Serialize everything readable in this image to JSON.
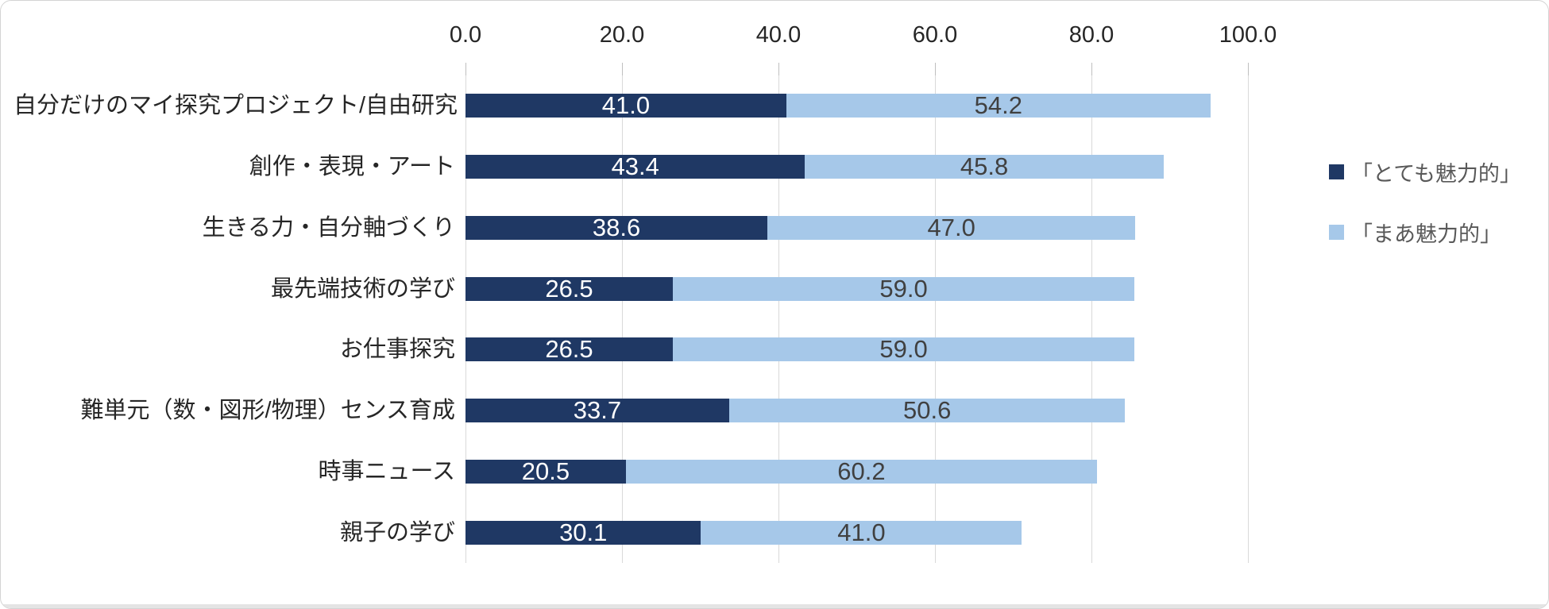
{
  "chart_data": {
    "type": "bar",
    "orientation": "horizontal",
    "stacked": true,
    "title": "",
    "xlabel": "",
    "ylabel": "",
    "xlim": [
      0,
      100
    ],
    "grid": true,
    "legend_position": "right",
    "categories": [
      "自分だけのマイ探究プロジェクト/自由研究",
      "創作・表現・アート",
      "生きる力・自分軸づくり",
      "最先端技術の学び",
      "お仕事探究",
      "難単元（数・図形/物理）センス育成",
      "時事ニュース",
      "親子の学び"
    ],
    "series": [
      {
        "name": "「とても魅力的」",
        "color": "#1F3864",
        "label_color": "#FFFFFF",
        "values": [
          41.0,
          43.4,
          38.6,
          26.5,
          26.5,
          33.7,
          20.5,
          30.1
        ]
      },
      {
        "name": "「まあ魅力的」",
        "color": "#A6C8E9",
        "label_color": "#404040",
        "values": [
          54.2,
          45.8,
          47.0,
          59.0,
          59.0,
          50.6,
          60.2,
          41.0
        ]
      }
    ],
    "x_ticks": [
      0,
      20,
      40,
      60,
      80,
      100
    ],
    "x_tick_labels": [
      "0.0",
      "20.0",
      "40.0",
      "60.0",
      "80.0",
      "100.0"
    ],
    "value_decimals": 1
  },
  "colors": {
    "gridline": "#D9D9D9",
    "axis_line": "#D9D9D9",
    "tick_text": "#262626",
    "category_text": "#262626",
    "legend_text": "#595959",
    "chart_border": "#D4D4D4"
  }
}
